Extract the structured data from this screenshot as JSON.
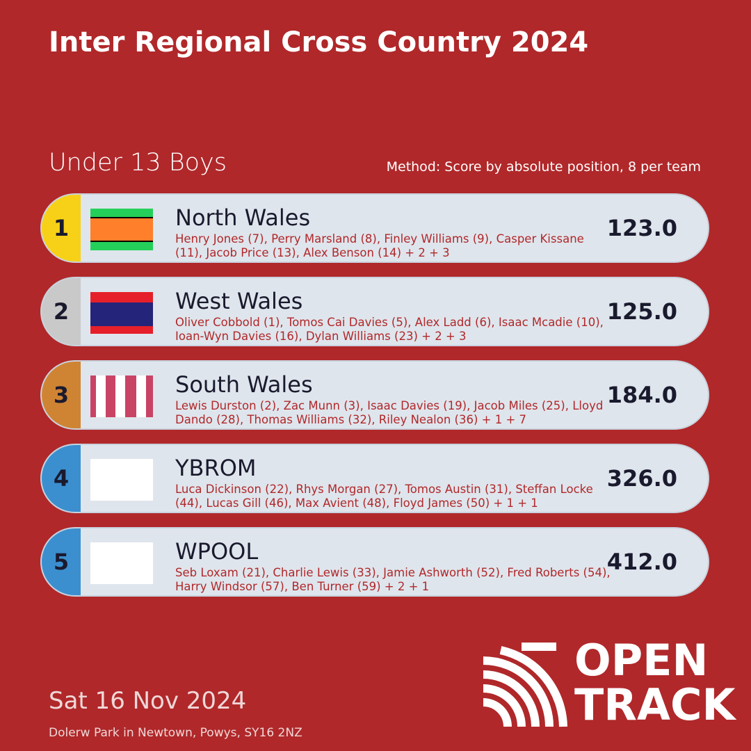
{
  "header": {
    "title": "Inter Regional Cross Country 2024",
    "subtitle": "Under 13 Boys",
    "method": "Method: Score by absolute position, 8 per team"
  },
  "teams": [
    {
      "rank": 1,
      "badge_color": "#f7d117",
      "name": "North Wales",
      "members": "Henry Jones (7), Perry Marsland (8), Finley Williams (9), Casper Kissane (11), Jacob Price (13), Alex Benson (14) + 2 + 3",
      "score": "123.0"
    },
    {
      "rank": 2,
      "badge_color": "#c9c9c9",
      "name": "West Wales",
      "members": "Oliver Cobbold (1), Tomos Cai Davies (5), Alex Ladd (6), Isaac Mcadie (10), Ioan-Wyn Davies (16), Dylan Williams (23) + 2 + 3",
      "score": "125.0"
    },
    {
      "rank": 3,
      "badge_color": "#cf8434",
      "name": "South Wales",
      "members": "Lewis Durston (2), Zac Munn (3), Isaac Davies (19), Jacob Miles (25), Lloyd Dando (28), Thomas Williams (32), Riley Nealon (36) + 1 + 7",
      "score": "184.0"
    },
    {
      "rank": 4,
      "badge_color": "#3b8fcf",
      "name": "YBROM",
      "members": "Luca Dickinson (22), Rhys Morgan (27), Tomos Austin (31), Steffan Locke (44), Lucas Gill (46), Max Avient (48), Floyd James (50) + 1 + 1",
      "score": "326.0"
    },
    {
      "rank": 5,
      "badge_color": "#3b8fcf",
      "name": "WPOOL",
      "members": "Seb Loxam (21), Charlie Lewis (33), Jamie Ashworth (52), Fred Roberts (54), Harry Windsor (57), Ben Turner (59) + 2 + 1",
      "score": "412.0"
    }
  ],
  "footer": {
    "date": "Sat 16 Nov 2024",
    "venue": "Dolerw Park in Newtown, Powys, SY16 2NZ"
  },
  "logo": {
    "line1": "OPEN",
    "line2": "TRACK"
  }
}
